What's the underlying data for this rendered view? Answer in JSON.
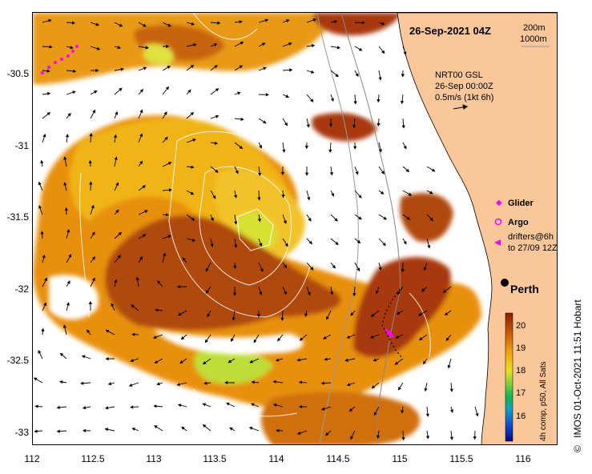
{
  "map": {
    "date_title": "26-Sep-2021 04Z",
    "depth_contours": [
      "200m",
      "1000m"
    ],
    "current_source": "NRT00 GSL",
    "current_date": "26-Sep 00:00Z",
    "current_scale": "0.5m/s (1kt 6h)",
    "city": "Perth",
    "legend": {
      "glider": "Glider",
      "argo": "Argo",
      "drifters_line1": "drifters@6h",
      "drifters_line2": "to 27/09 12Z"
    },
    "colorbar": {
      "ticks": [
        "20",
        "19",
        "18",
        "17",
        "16"
      ],
      "label": "4h comp, p50, All Sats"
    },
    "credit": "IMOS 01-Oct-2021 11:51 Hobart",
    "copyright_symbol": "©",
    "y_ticks": [
      "-30.5",
      "-31",
      "-31.5",
      "-32",
      "-32.5",
      "-33"
    ],
    "x_ticks": [
      "112",
      "112.5",
      "113",
      "113.5",
      "114",
      "114.5",
      "115",
      "115.5",
      "116"
    ],
    "colors": {
      "land": "#f9c79a",
      "sst_warm": "#b84a08",
      "sst_mid": "#e8900c",
      "sst_cool": "#f0c020",
      "sst_cold": "#c8e020",
      "glider": "#ff00ff"
    }
  }
}
